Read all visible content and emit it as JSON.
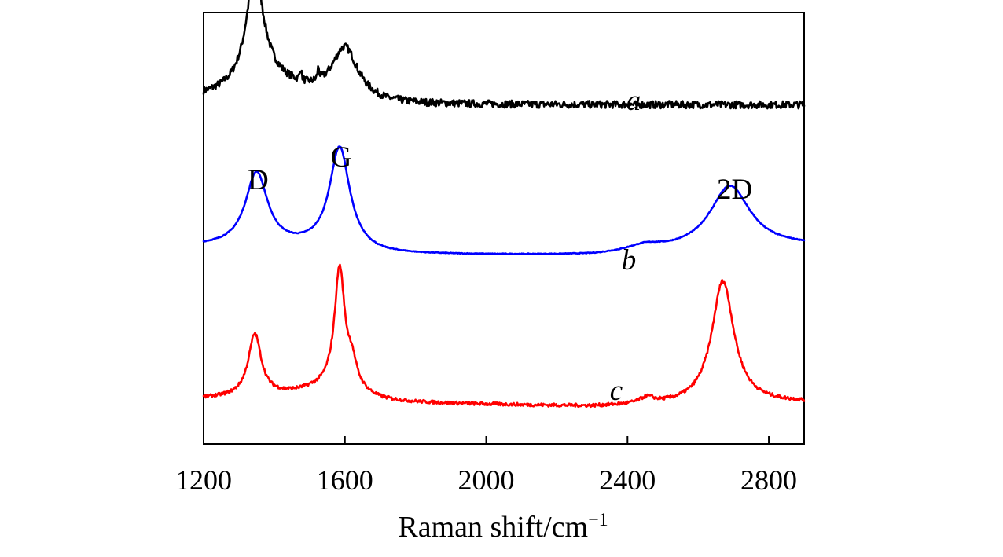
{
  "chart_data": {
    "type": "line",
    "title": "",
    "xlabel": "Raman shift/cm",
    "xlabel_superscript": "−1",
    "ylabel": "",
    "xlim": [
      1200,
      2900
    ],
    "x_ticks": [
      1200,
      1600,
      2000,
      2400,
      2800
    ],
    "y_ticks": [],
    "y_scale": "arbitrary intensity, vertically offset traces",
    "grid": false,
    "legend": "none",
    "peak_labels": [
      {
        "text": "D",
        "x": 1350
      },
      {
        "text": "G",
        "x": 1585
      },
      {
        "text": "2D",
        "x": 2690
      }
    ],
    "series": [
      {
        "name": "a",
        "color": "#000000",
        "offset": 0.65,
        "noise": 0.018,
        "baseline": [
          [
            1200,
            0.03
          ],
          [
            1450,
            0.04
          ],
          [
            1720,
            0.0
          ],
          [
            2900,
            0.0
          ]
        ],
        "peaks": [
          {
            "x": 1345,
            "height": 0.52,
            "width": 28
          },
          {
            "x": 1365,
            "height": 0.1,
            "width": 80
          },
          {
            "x": 1600,
            "height": 0.25,
            "width": 45
          },
          {
            "x": 1475,
            "height": 0.06,
            "width": 3
          },
          {
            "x": 1525,
            "height": 0.06,
            "width": 3
          }
        ]
      },
      {
        "name": "b",
        "color": "#0000ff",
        "offset": -0.08,
        "noise": 0.002,
        "baseline": [
          [
            1200,
            0.04
          ],
          [
            1500,
            0.03
          ],
          [
            1700,
            0.0
          ],
          [
            2300,
            -0.005
          ],
          [
            2900,
            0.04
          ]
        ],
        "peaks": [
          {
            "x": 1350,
            "height": 0.36,
            "width": 38
          },
          {
            "x": 1585,
            "height": 0.5,
            "width": 35
          },
          {
            "x": 2690,
            "height": 0.31,
            "width": 70
          },
          {
            "x": 2450,
            "height": 0.03,
            "width": 60
          }
        ]
      },
      {
        "name": "c",
        "color": "#ff0000",
        "offset": -0.82,
        "noise": 0.008,
        "baseline": [
          [
            1200,
            0.04
          ],
          [
            1500,
            0.06
          ],
          [
            1700,
            0.02
          ],
          [
            2300,
            0.0
          ],
          [
            2600,
            0.01
          ],
          [
            2900,
            0.02
          ]
        ],
        "peaks": [
          {
            "x": 1345,
            "height": 0.3,
            "width": 22
          },
          {
            "x": 1585,
            "height": 0.55,
            "width": 17
          },
          {
            "x": 1620,
            "height": 0.1,
            "width": 15
          },
          {
            "x": 1590,
            "height": 0.08,
            "width": 60
          },
          {
            "x": 2670,
            "height": 0.6,
            "width": 38
          },
          {
            "x": 2455,
            "height": 0.03,
            "width": 25
          }
        ]
      }
    ]
  }
}
